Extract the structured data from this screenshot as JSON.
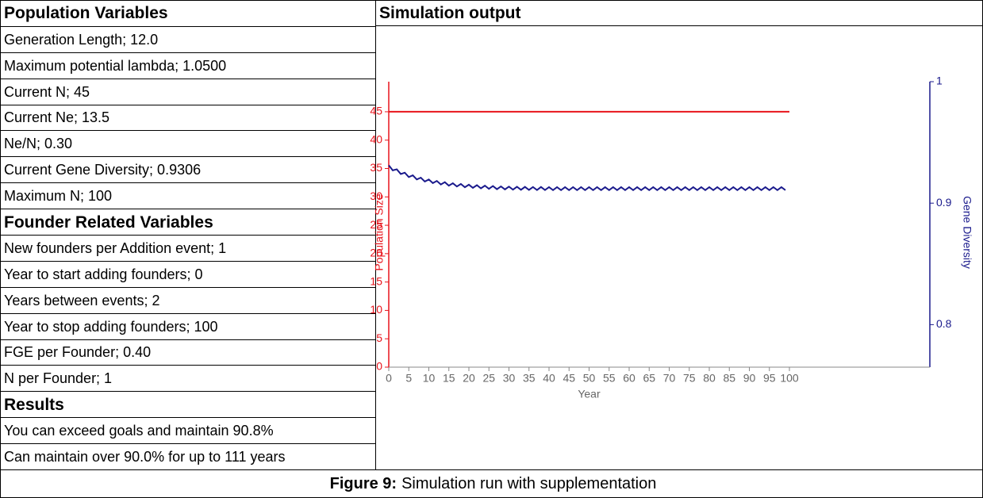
{
  "left_table": {
    "sections": [
      {
        "title": "Population Variables",
        "rows": [
          "Generation Length; 12.0",
          "Maximum potential lambda; 1.0500",
          "Current N; 45",
          "Current Ne; 13.5",
          "Ne/N; 0.30",
          "Current Gene Diversity; 0.9306",
          "Maximum N; 100"
        ]
      },
      {
        "title": "Founder Related Variables",
        "rows": [
          "New founders per Addition event; 1",
          "Year to start adding founders; 0",
          "Years between events; 2",
          "Year to stop adding founders; 100",
          "FGE per Founder; 0.40",
          "N per Founder; 1"
        ]
      },
      {
        "title": "Results",
        "rows": [
          "You can exceed goals and maintain 90.8%",
          "Can maintain over 90.0% for up to 111 years"
        ]
      }
    ]
  },
  "right_header": "Simulation output",
  "caption": {
    "label": "Figure 9:",
    "text": "Simulation run with supplementation"
  },
  "chart_data": {
    "type": "line",
    "xlabel": "Year",
    "ylabel": "Population Size",
    "y2label": "Gene Diversity",
    "xlim": [
      0,
      100
    ],
    "xticks": [
      0,
      5,
      10,
      15,
      20,
      25,
      30,
      35,
      40,
      45,
      50,
      55,
      60,
      65,
      70,
      75,
      80,
      85,
      90,
      95,
      100
    ],
    "ylim": [
      0,
      50.3
    ],
    "yticks": [
      0,
      5,
      10,
      15,
      20,
      25,
      30,
      35,
      40,
      45
    ],
    "y2lim": [
      0.765,
      1
    ],
    "y2ticks": [
      0.8,
      0.9,
      1
    ],
    "series": [
      {
        "name": "Population Size",
        "color": "#e8141c",
        "x": [
          0,
          100
        ],
        "values": [
          45,
          45
        ]
      },
      {
        "name": "Gene Diversity",
        "color": "#1a1a8c",
        "axis": "y2",
        "x": [
          0,
          1,
          2,
          3,
          4,
          5,
          6,
          7,
          8,
          9,
          10,
          11,
          12,
          13,
          14,
          15,
          16,
          17,
          18,
          19,
          20,
          21,
          22,
          23,
          24,
          25,
          26,
          27,
          28,
          29,
          30,
          31,
          32,
          33,
          34,
          35,
          36,
          37,
          38,
          39,
          40,
          41,
          42,
          43,
          44,
          45,
          46,
          47,
          48,
          49,
          50,
          51,
          52,
          53,
          54,
          55,
          56,
          57,
          58,
          59,
          60,
          61,
          62,
          63,
          64,
          65,
          66,
          67,
          68,
          69,
          70,
          71,
          72,
          73,
          74,
          75,
          76,
          77,
          78,
          79,
          80,
          81,
          82,
          83,
          84,
          85,
          86,
          87,
          88,
          89,
          90,
          91,
          92,
          93,
          94,
          95,
          96,
          97,
          98,
          99
        ],
        "values": [
          0.9312,
          0.927,
          0.9279,
          0.924,
          0.9251,
          0.9215,
          0.9229,
          0.9195,
          0.921,
          0.9178,
          0.9195,
          0.9165,
          0.9183,
          0.9154,
          0.9173,
          0.9144,
          0.9164,
          0.9137,
          0.9158,
          0.9131,
          0.9152,
          0.9126,
          0.9148,
          0.9122,
          0.9144,
          0.9118,
          0.9141,
          0.9115,
          0.9138,
          0.9113,
          0.9136,
          0.9111,
          0.9135,
          0.911,
          0.9134,
          0.9109,
          0.9133,
          0.9108,
          0.9133,
          0.9108,
          0.9132,
          0.9107,
          0.9132,
          0.9107,
          0.9132,
          0.9107,
          0.9132,
          0.9107,
          0.9132,
          0.9107,
          0.9132,
          0.9107,
          0.9132,
          0.9107,
          0.9132,
          0.9107,
          0.9132,
          0.9107,
          0.9132,
          0.9107,
          0.9132,
          0.9107,
          0.9132,
          0.9107,
          0.9132,
          0.9107,
          0.9132,
          0.9107,
          0.9132,
          0.9107,
          0.9132,
          0.9107,
          0.9132,
          0.9107,
          0.9132,
          0.9107,
          0.9132,
          0.9107,
          0.9132,
          0.9107,
          0.9132,
          0.9107,
          0.9132,
          0.9107,
          0.9132,
          0.9107,
          0.9132,
          0.9107,
          0.9132,
          0.9107,
          0.9132,
          0.9107,
          0.9132,
          0.9107,
          0.9132,
          0.9107,
          0.9132,
          0.9107,
          0.9132,
          0.9107
        ]
      }
    ]
  }
}
